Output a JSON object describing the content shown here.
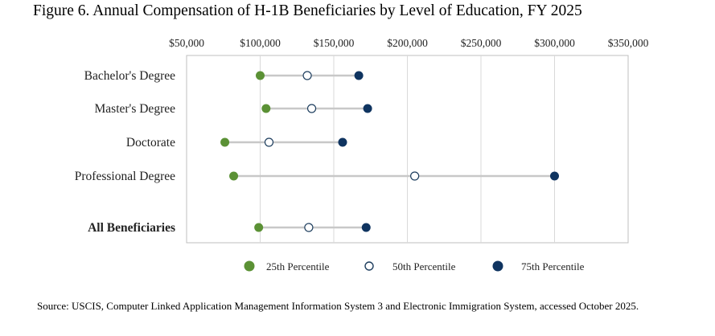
{
  "title": "Figure 6. Annual Compensation of H-1B Beneficiaries by Level of Education, FY 2025",
  "source": "Source: USCIS, Computer Linked Application Management Information System 3 and Electronic Immigration System, accessed October 2025.",
  "colors": {
    "p25": "#5b9135",
    "p50_fill": "#ffffff",
    "p50_stroke": "#1f3f5f",
    "p75": "#0f3460",
    "connector": "#c8c8c8",
    "grid": "#d9d9d9",
    "frame": "#bfbfbf"
  },
  "chart_data": {
    "type": "dumbbell",
    "xlim": [
      50000,
      350000
    ],
    "x_ticks": [
      "$50,000",
      "$100,000",
      "$150,000",
      "$200,000",
      "$250,000",
      "$300,000",
      "$350,000"
    ],
    "x_tick_values": [
      50000,
      100000,
      150000,
      200000,
      250000,
      300000,
      350000
    ],
    "grid": true,
    "legend_position": "bottom",
    "legend": [
      "25th Percentile",
      "50th Percentile",
      "75th Percentile"
    ],
    "categories": [
      "Bachelor's Degree",
      "Master's Degree",
      "Doctorate",
      "Professional Degree",
      "All Beneficiaries"
    ],
    "category_bold": [
      false,
      false,
      false,
      false,
      true
    ],
    "series": [
      {
        "name": "25th Percentile",
        "values": [
          100000,
          104000,
          76000,
          82000,
          99000
        ]
      },
      {
        "name": "50th Percentile",
        "values": [
          132000,
          135000,
          106000,
          205000,
          133000
        ]
      },
      {
        "name": "75th Percentile",
        "values": [
          167000,
          173000,
          156000,
          300000,
          172000
        ]
      }
    ]
  }
}
